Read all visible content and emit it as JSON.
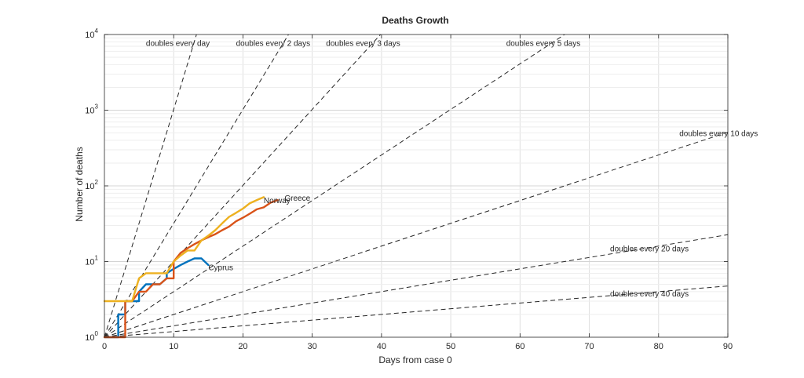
{
  "chart_data": {
    "type": "line",
    "title": "Deaths Growth",
    "xlabel": "Days from case 0",
    "ylabel": "Number of deaths",
    "xlim": [
      0,
      90
    ],
    "ylim": [
      1,
      10000
    ],
    "yscale": "log",
    "grid": true,
    "x_ticks": [
      "0",
      "10",
      "20",
      "30",
      "40",
      "50",
      "60",
      "70",
      "80",
      "90"
    ],
    "y_ticks": [
      {
        "base": "10",
        "exp": "0"
      },
      {
        "base": "10",
        "exp": "1"
      },
      {
        "base": "10",
        "exp": "2"
      },
      {
        "base": "10",
        "exp": "3"
      },
      {
        "base": "10",
        "exp": "4"
      }
    ],
    "reference_lines": [
      {
        "label": "doubles every day",
        "doubling_days": 1,
        "label_x": 6,
        "label_y": 7800
      },
      {
        "label": "doubles every 2 days",
        "doubling_days": 2,
        "label_x": 19,
        "label_y": 7800
      },
      {
        "label": "doubles every 3 days",
        "doubling_days": 3,
        "label_x": 32,
        "label_y": 7800
      },
      {
        "label": "doubles every 5 days",
        "doubling_days": 5,
        "label_x": 58,
        "label_y": 7800
      },
      {
        "label": "doubles every 10 days",
        "doubling_days": 10,
        "label_x": 83,
        "label_y": 500
      },
      {
        "label": "doubles every 20 days",
        "doubling_days": 20,
        "label_x": 73,
        "label_y": 15
      },
      {
        "label": "doubles every 40 days",
        "doubling_days": 40,
        "label_x": 73,
        "label_y": 3.8
      }
    ],
    "series": [
      {
        "name": "Cyprus",
        "color": "#0072BD",
        "x": [
          0,
          1,
          2,
          2,
          3,
          3,
          4,
          5,
          5,
          6,
          7,
          8,
          9,
          9,
          10,
          11,
          12,
          13,
          14,
          15
        ],
        "y": [
          1,
          1,
          1,
          2,
          2,
          3,
          3,
          3,
          4,
          5,
          5,
          5,
          6,
          7,
          8,
          9,
          10,
          11,
          11,
          9
        ],
        "label_x": 15,
        "label_y": 8.5
      },
      {
        "name": "Greece",
        "color": "#D95319",
        "x": [
          0,
          1,
          2,
          3,
          3,
          4,
          5,
          6,
          7,
          8,
          9,
          10,
          10,
          11,
          12,
          13,
          14,
          15,
          16,
          17,
          18,
          19,
          20,
          21,
          22,
          23,
          24,
          25
        ],
        "y": [
          1,
          1,
          1,
          1,
          3,
          3,
          4,
          4,
          5,
          5,
          6,
          6,
          10,
          13,
          15,
          17,
          19,
          21,
          23,
          26,
          29,
          34,
          38,
          43,
          49,
          52,
          60,
          65
        ],
        "label_x": 26,
        "label_y": 70
      },
      {
        "name": "Norway",
        "color": "#EDB120",
        "x": [
          0,
          1,
          2,
          3,
          4,
          5,
          6,
          7,
          8,
          9,
          10,
          11,
          12,
          13,
          14,
          15,
          16,
          17,
          18,
          19,
          20,
          21,
          22,
          23
        ],
        "y": [
          3,
          3,
          3,
          3,
          3,
          6,
          7,
          7,
          7,
          7,
          10,
          12,
          14,
          14,
          19,
          22,
          26,
          32,
          39,
          44,
          50,
          59,
          65,
          71
        ],
        "label_x": 23,
        "label_y": 65
      }
    ]
  }
}
